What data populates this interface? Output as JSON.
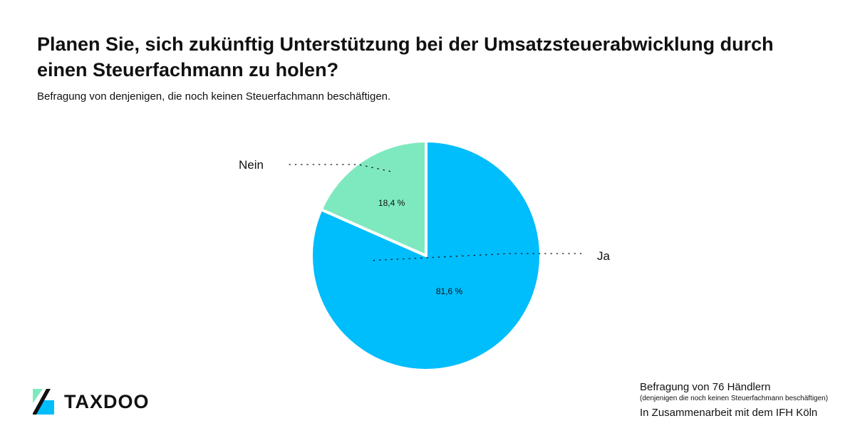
{
  "header": {
    "title": "Planen Sie, sich zukünftig Unterstützung bei der Umsatzsteuerabwicklung durch einen Steuerfachmann zu holen?",
    "subtitle": "Befragung von denjenigen, die noch keinen Steuerfachmann beschäftigen."
  },
  "chart_data": {
    "type": "pie",
    "categories": [
      "Ja",
      "Nein"
    ],
    "values": [
      81.6,
      18.4
    ],
    "value_labels": [
      "81,6 %",
      "18,4 %"
    ],
    "colors": [
      "#00bdfc",
      "#7ee9bf"
    ],
    "start": "12 o'clock",
    "direction": "clockwise"
  },
  "footer": {
    "line1": "Befragung von 76 Händlern",
    "line2": "(denjenigen die noch keinen Steuerfachmann beschäftigen)",
    "line3": "In Zusammenarbeit mit dem IFH Köln"
  },
  "logo": {
    "text": "TAXDOO",
    "icon": "taxdoo-logo-icon",
    "colors": [
      "#00bdfc",
      "#7ee9bf",
      "#111111"
    ]
  }
}
